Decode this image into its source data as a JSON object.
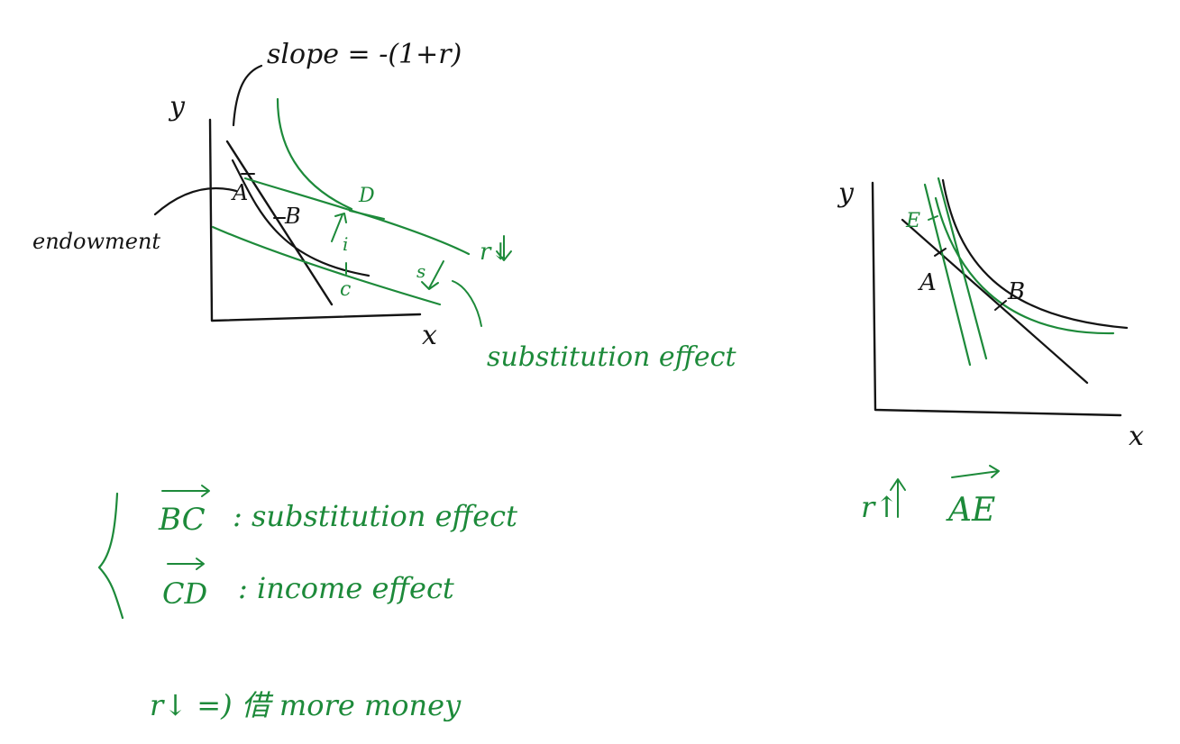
{
  "colors": {
    "ink": "#141414",
    "green": "#1d8a3a",
    "background": "#ffffff"
  },
  "left_diagram": {
    "slope_label": "slope = -(1+r)",
    "endowment_label": "endowment",
    "y_axis_label": "y",
    "x_axis_label": "x",
    "point_a": "A",
    "point_b": "B",
    "point_c": "c",
    "point_d": "D",
    "i_label": "i",
    "s_label": "s",
    "r_down_label": "r↓",
    "substitution_label": "substitution effect"
  },
  "right_diagram": {
    "y_axis_label": "y",
    "x_axis_label": "x",
    "point_a": "A",
    "point_b": "B",
    "point_e": "E"
  },
  "notes": {
    "bc_vector": "BC",
    "bc_desc": ": substitution effect",
    "cd_vector": "CD",
    "cd_desc": ": income effect",
    "r_up": "r↑",
    "ae_vector": "AE",
    "bottom_line": "r↓ =) 借 more money"
  }
}
